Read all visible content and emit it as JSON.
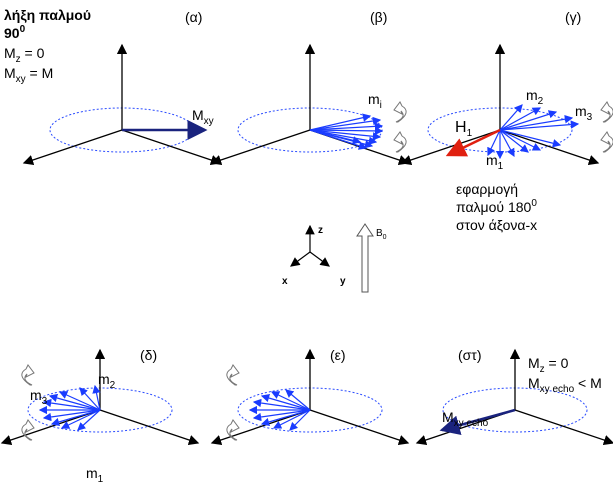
{
  "panels": [
    "(α)",
    "(β)",
    "(γ)",
    "(δ)",
    "(ε)",
    "(στ)"
  ],
  "panel_a": {
    "line1": "λήξη παλμού",
    "line2": {
      "base": "90",
      "sup": "0"
    },
    "mz": {
      "base": "M",
      "sub": "z",
      "rest": " = 0"
    },
    "mxy": {
      "base": "M",
      "sub": "xy",
      "rest": " = M"
    },
    "vector": {
      "base": "M",
      "sub": "xy"
    }
  },
  "panel_b": {
    "vector": {
      "base": "m",
      "sub": "i"
    }
  },
  "panel_c": {
    "m2": {
      "base": "m",
      "sub": "2"
    },
    "m3": {
      "base": "m",
      "sub": "3"
    },
    "m1": {
      "base": "m",
      "sub": "1"
    },
    "h1": {
      "base": "H",
      "sub": "1"
    },
    "note": [
      "εφαρμογή",
      {
        "base": "παλμού 180",
        "sup": "0"
      },
      "στον άξονα-x"
    ]
  },
  "frame": {
    "z": "z",
    "x": "x",
    "y": "y",
    "b0": {
      "base": "B",
      "sub": "0"
    }
  },
  "panel_d": {
    "m2": {
      "base": "m",
      "sub": "2"
    },
    "m3": {
      "base": "m",
      "sub": "3"
    },
    "m1": {
      "base": "m",
      "sub": "1"
    }
  },
  "panel_f": {
    "mz": {
      "base": "M",
      "sub": "z",
      "rest": " = 0"
    },
    "mxy": {
      "base": "M",
      "sub": "xy echo",
      "rest": " < M"
    },
    "vector": {
      "base": "M",
      "sub": "xy echo"
    }
  }
}
